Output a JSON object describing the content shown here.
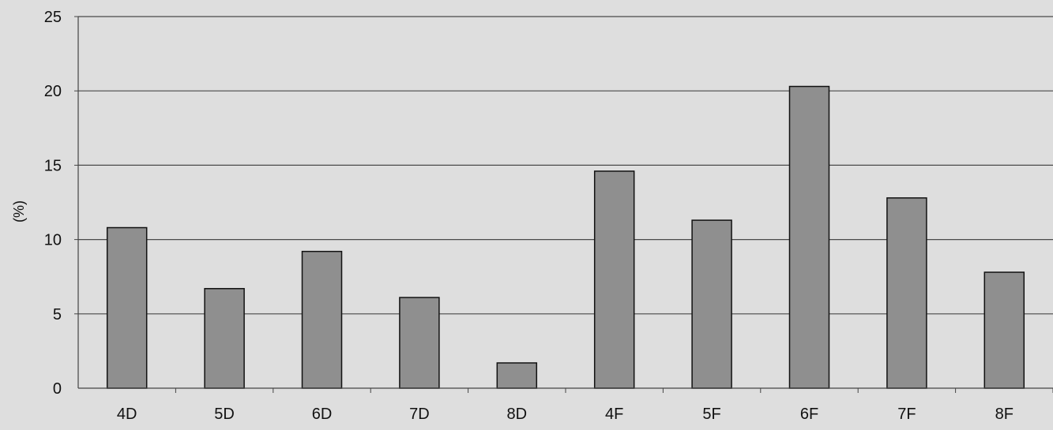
{
  "chart_data": {
    "type": "bar",
    "title": "",
    "xlabel": "",
    "ylabel": "(%)",
    "categories": [
      "4D",
      "5D",
      "6D",
      "7D",
      "8D",
      "4F",
      "5F",
      "6F",
      "7F",
      "8F"
    ],
    "values": [
      10.8,
      6.7,
      9.2,
      6.1,
      1.7,
      14.6,
      11.3,
      20.3,
      12.8,
      7.8
    ],
    "ylim": [
      0,
      25
    ],
    "yticks": [
      0,
      5,
      10,
      15,
      20,
      25
    ],
    "grid": true,
    "legend": "none"
  },
  "colors": {
    "background": "#dedede",
    "bar_fill": "#8f8f8f",
    "bar_stroke": "#111111",
    "gridline": "#4a4a4a",
    "axis": "#444444"
  }
}
